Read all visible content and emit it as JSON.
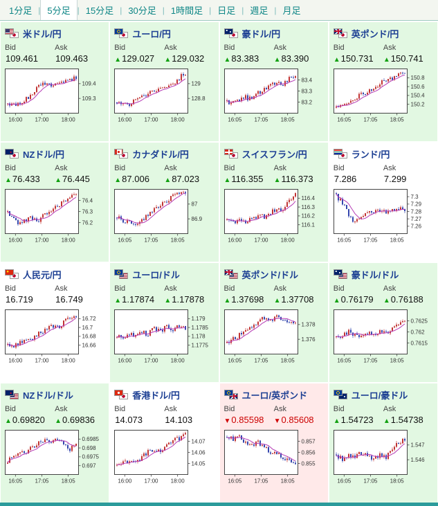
{
  "labels": {
    "bid": "Bid",
    "ask": "Ask"
  },
  "symbols": {
    "up": "▲",
    "down": "▼"
  },
  "colors": {
    "accent_teal": "#0e8686",
    "up_bg": "#e2f8e2",
    "down_bg": "#ffe9e9",
    "up_candle": "#c13434",
    "down_candle": "#3446ad",
    "ma_line": "#b53ab5",
    "up_marker": "#12a112",
    "down_marker": "#d00000",
    "pair_name": "#1c3f93"
  },
  "tabs": {
    "active_index": 1,
    "separator": "|",
    "items": [
      {
        "label": "1分足",
        "slug": "1min"
      },
      {
        "label": "5分足",
        "slug": "5min"
      },
      {
        "label": "15分足",
        "slug": "15min"
      },
      {
        "label": "30分足",
        "slug": "30min"
      },
      {
        "label": "1時間足",
        "slug": "1hour"
      },
      {
        "label": "日足",
        "slug": "daily"
      },
      {
        "label": "週足",
        "slug": "weekly"
      },
      {
        "label": "月足",
        "slug": "monthly"
      }
    ]
  },
  "pairs": [
    {
      "slug": "usdjpy",
      "name": "米ドル/円",
      "flags": [
        "us",
        "jp"
      ],
      "tone": "up",
      "bid": {
        "dir": "none",
        "value": "109.461"
      },
      "ask": {
        "dir": "none",
        "value": "109.463"
      },
      "chart_data": {
        "type": "candlestick",
        "ylabels": [
          "109.4",
          "109.3"
        ],
        "xlabels": [
          "16:00",
          "17:00",
          "18:00"
        ],
        "profile": [
          0.22,
          0.15,
          0.2,
          0.32,
          0.45,
          0.62,
          0.7,
          0.66,
          0.72,
          0.7,
          0.78,
          0.82
        ]
      }
    },
    {
      "slug": "eurjpy",
      "name": "ユーロ/円",
      "flags": [
        "eu",
        "jp"
      ],
      "tone": "up",
      "bid": {
        "dir": "up",
        "value": "129.027"
      },
      "ask": {
        "dir": "up",
        "value": "129.032"
      },
      "chart_data": {
        "type": "candlestick",
        "ylabels": [
          "129",
          "128.8"
        ],
        "xlabels": [
          "16:00",
          "17:00",
          "18:00"
        ],
        "profile": [
          0.18,
          0.22,
          0.2,
          0.3,
          0.38,
          0.45,
          0.52,
          0.6,
          0.55,
          0.68,
          0.8,
          0.95
        ]
      }
    },
    {
      "slug": "audjpy",
      "name": "豪ドル/円",
      "flags": [
        "au",
        "jp"
      ],
      "tone": "up",
      "bid": {
        "dir": "up",
        "value": "83.383"
      },
      "ask": {
        "dir": "up",
        "value": "83.390"
      },
      "chart_data": {
        "type": "candlestick",
        "ylabels": [
          "83.4",
          "83.3",
          "83.2"
        ],
        "xlabels": [
          "16:05",
          "17:05",
          "18:05"
        ],
        "profile": [
          0.25,
          0.2,
          0.28,
          0.35,
          0.3,
          0.45,
          0.55,
          0.62,
          0.7,
          0.68,
          0.8,
          0.9
        ]
      }
    },
    {
      "slug": "gbpjpy",
      "name": "英ポンド/円",
      "flags": [
        "gb",
        "jp"
      ],
      "tone": "up",
      "bid": {
        "dir": "up",
        "value": "150.731"
      },
      "ask": {
        "dir": "up",
        "value": "150.741"
      },
      "chart_data": {
        "type": "candlestick",
        "ylabels": [
          "150.8",
          "150.6",
          "150.4",
          "150.2"
        ],
        "xlabels": [
          "16:05",
          "17:05",
          "18:05"
        ],
        "profile": [
          0.15,
          0.12,
          0.22,
          0.3,
          0.42,
          0.5,
          0.58,
          0.68,
          0.74,
          0.82,
          0.9,
          0.95
        ]
      }
    },
    {
      "slug": "nzdjpy",
      "name": "NZドル/円",
      "flags": [
        "nz",
        "jp"
      ],
      "tone": "up",
      "bid": {
        "dir": "up",
        "value": "76.433"
      },
      "ask": {
        "dir": "up",
        "value": "76.445"
      },
      "chart_data": {
        "type": "candlestick",
        "ylabels": [
          "76.4",
          "76.3",
          "76.2"
        ],
        "xlabels": [
          "16:00",
          "17:00",
          "18:00"
        ],
        "profile": [
          0.45,
          0.3,
          0.22,
          0.28,
          0.35,
          0.3,
          0.45,
          0.55,
          0.65,
          0.72,
          0.82,
          0.9
        ]
      }
    },
    {
      "slug": "cadjpy",
      "name": "カナダドル/円",
      "flags": [
        "ca",
        "jp"
      ],
      "tone": "up",
      "bid": {
        "dir": "up",
        "value": "87.006"
      },
      "ask": {
        "dir": "up",
        "value": "87.023"
      },
      "chart_data": {
        "type": "candlestick",
        "ylabels": [
          "87",
          "86.9"
        ],
        "xlabels": [
          "16:05",
          "17:05",
          "18:05"
        ],
        "profile": [
          0.35,
          0.28,
          0.22,
          0.18,
          0.3,
          0.42,
          0.55,
          0.65,
          0.75,
          0.85,
          0.92,
          0.95
        ]
      }
    },
    {
      "slug": "chfjpy",
      "name": "スイスフラン/円",
      "flags": [
        "ch",
        "jp"
      ],
      "tone": "up",
      "bid": {
        "dir": "up",
        "value": "116.355"
      },
      "ask": {
        "dir": "up",
        "value": "116.373"
      },
      "chart_data": {
        "type": "candlestick",
        "ylabels": [
          "116.4",
          "116.3",
          "116.2",
          "116.1"
        ],
        "xlabels": [
          "16:00",
          "17:00",
          "18:00"
        ],
        "profile": [
          0.28,
          0.24,
          0.3,
          0.26,
          0.35,
          0.4,
          0.38,
          0.48,
          0.52,
          0.58,
          0.75,
          0.95
        ]
      }
    },
    {
      "slug": "zarjpy",
      "name": "ランド/円",
      "flags": [
        "za",
        "jp"
      ],
      "tone": "flat",
      "bid": {
        "dir": "none",
        "value": "7.286"
      },
      "ask": {
        "dir": "none",
        "value": "7.299"
      },
      "chart_data": {
        "type": "candlestick",
        "ylabels": [
          "7.3",
          "7.29",
          "7.28",
          "7.27",
          "7.26"
        ],
        "xlabels": [
          "16:05",
          "17:05",
          "18:05"
        ],
        "profile": [
          0.88,
          0.7,
          0.4,
          0.25,
          0.38,
          0.5,
          0.46,
          0.52,
          0.48,
          0.55,
          0.6,
          0.52
        ]
      }
    },
    {
      "slug": "cnyjpy",
      "name": "人民元/円",
      "flags": [
        "cn",
        "jp"
      ],
      "tone": "flat",
      "bid": {
        "dir": "none",
        "value": "16.719"
      },
      "ask": {
        "dir": "none",
        "value": "16.749"
      },
      "chart_data": {
        "type": "candlestick",
        "ylabels": [
          "16.72",
          "16.7",
          "16.68",
          "16.66"
        ],
        "xlabels": [
          "16:00",
          "17:00",
          "18:00"
        ],
        "profile": [
          0.2,
          0.15,
          0.25,
          0.35,
          0.3,
          0.45,
          0.55,
          0.65,
          0.6,
          0.72,
          0.85,
          0.9
        ]
      }
    },
    {
      "slug": "eurusd",
      "name": "ユーロ/ドル",
      "flags": [
        "eu",
        "us"
      ],
      "tone": "up",
      "bid": {
        "dir": "up",
        "value": "1.17874"
      },
      "ask": {
        "dir": "up",
        "value": "1.17878"
      },
      "chart_data": {
        "type": "candlestick",
        "ylabels": [
          "1.179",
          "1.1785",
          "1.178",
          "1.1775"
        ],
        "xlabels": [
          "16:00",
          "17:00",
          "18:00"
        ],
        "profile": [
          0.4,
          0.32,
          0.48,
          0.38,
          0.52,
          0.44,
          0.58,
          0.5,
          0.62,
          0.55,
          0.65,
          0.6
        ]
      }
    },
    {
      "slug": "gbpusd",
      "name": "英ポンド/ドル",
      "flags": [
        "gb",
        "us"
      ],
      "tone": "up",
      "bid": {
        "dir": "up",
        "value": "1.37698"
      },
      "ask": {
        "dir": "up",
        "value": "1.37708"
      },
      "chart_data": {
        "type": "candlestick",
        "ylabels": [
          "1.378",
          "1.376"
        ],
        "xlabels": [
          "16:05",
          "17:05",
          "18:05"
        ],
        "profile": [
          0.25,
          0.32,
          0.42,
          0.52,
          0.62,
          0.75,
          0.82,
          0.78,
          0.85,
          0.8,
          0.72,
          0.78
        ]
      }
    },
    {
      "slug": "audusd",
      "name": "豪ドル/ドル",
      "flags": [
        "au",
        "us"
      ],
      "tone": "up",
      "bid": {
        "dir": "up",
        "value": "0.76179"
      },
      "ask": {
        "dir": "up",
        "value": "0.76188"
      },
      "chart_data": {
        "type": "candlestick",
        "ylabels": [
          "0.7625",
          "0.762",
          "0.7615"
        ],
        "xlabels": [
          "16:05",
          "17:05",
          "18:05"
        ],
        "profile": [
          0.45,
          0.38,
          0.52,
          0.42,
          0.35,
          0.48,
          0.42,
          0.55,
          0.48,
          0.58,
          0.68,
          0.72
        ]
      }
    },
    {
      "slug": "nzdusd",
      "name": "NZドル/ドル",
      "flags": [
        "nz",
        "us"
      ],
      "tone": "up",
      "bid": {
        "dir": "up",
        "value": "0.69820"
      },
      "ask": {
        "dir": "up",
        "value": "0.69836"
      },
      "chart_data": {
        "type": "candlestick",
        "ylabels": [
          "0.6985",
          "0.698",
          "0.6975",
          "0.697"
        ],
        "xlabels": [
          "16:05",
          "17:05",
          "18:05"
        ],
        "profile": [
          0.3,
          0.42,
          0.52,
          0.48,
          0.62,
          0.72,
          0.8,
          0.75,
          0.82,
          0.7,
          0.58,
          0.66
        ]
      }
    },
    {
      "slug": "hkdjpy",
      "name": "香港ドル/円",
      "flags": [
        "hk",
        "jp"
      ],
      "tone": "flat",
      "bid": {
        "dir": "none",
        "value": "14.073"
      },
      "ask": {
        "dir": "none",
        "value": "14.103"
      },
      "chart_data": {
        "type": "candlestick",
        "ylabels": [
          "14.07",
          "14.06",
          "14.05"
        ],
        "xlabels": [
          "16:00",
          "17:00",
          "18:00"
        ],
        "profile": [
          0.18,
          0.24,
          0.3,
          0.26,
          0.4,
          0.5,
          0.58,
          0.55,
          0.68,
          0.78,
          0.85,
          0.92
        ]
      }
    },
    {
      "slug": "eurgbp",
      "name": "ユーロ/英ポンド",
      "flags": [
        "eu",
        "gb"
      ],
      "tone": "down",
      "bid": {
        "dir": "down",
        "value": "0.85598"
      },
      "ask": {
        "dir": "down",
        "value": "0.85608"
      },
      "chart_data": {
        "type": "candlestick",
        "ylabels": [
          "0.857",
          "0.856",
          "0.855"
        ],
        "xlabels": [
          "16:05",
          "17:05",
          "18:05"
        ],
        "profile": [
          0.88,
          0.82,
          0.85,
          0.75,
          0.68,
          0.72,
          0.6,
          0.52,
          0.45,
          0.38,
          0.28,
          0.22
        ]
      }
    },
    {
      "slug": "euraud",
      "name": "ユーロ/豪ドル",
      "flags": [
        "eu",
        "au"
      ],
      "tone": "up",
      "bid": {
        "dir": "up",
        "value": "1.54723"
      },
      "ask": {
        "dir": "up",
        "value": "1.54738"
      },
      "chart_data": {
        "type": "candlestick",
        "ylabels": [
          "1.547",
          "1.546"
        ],
        "xlabels": [
          "16:05",
          "17:05",
          "18:05"
        ],
        "profile": [
          0.42,
          0.35,
          0.45,
          0.38,
          0.5,
          0.42,
          0.36,
          0.45,
          0.4,
          0.55,
          0.75,
          0.82
        ]
      }
    }
  ]
}
